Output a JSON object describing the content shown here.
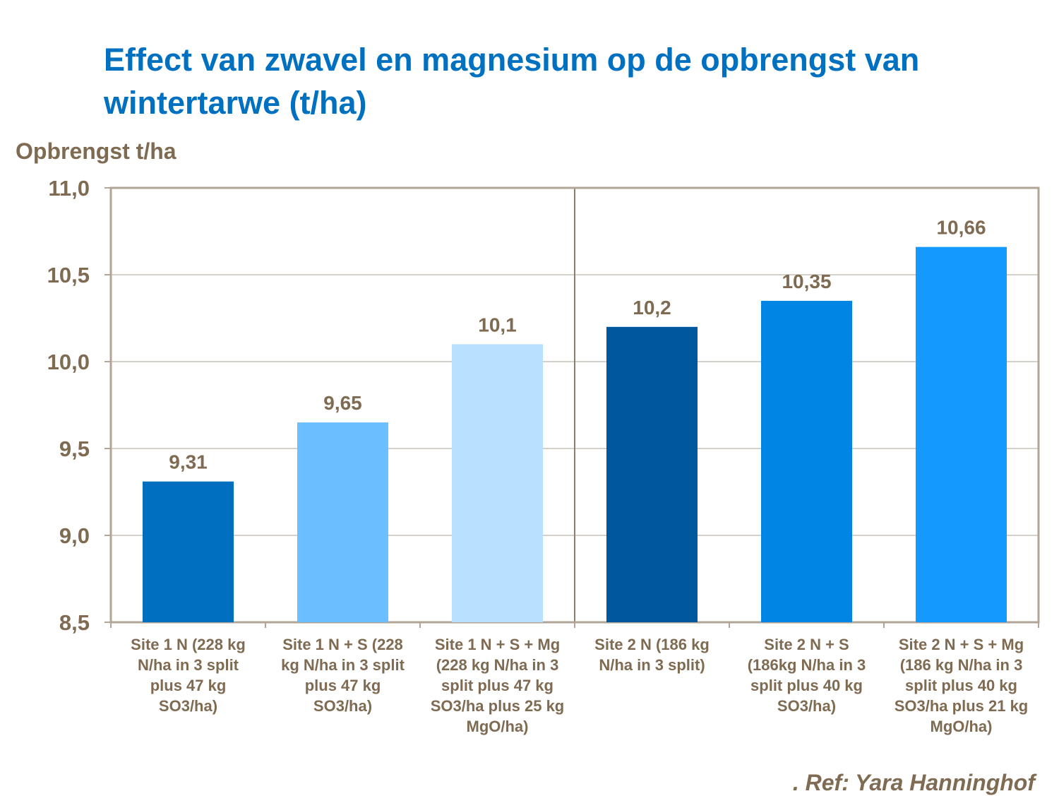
{
  "chart_data": {
    "type": "bar",
    "title": "Effect van zwavel en magnesium op de opbrengst van wintertarwe (t/ha)",
    "ylabel": "Opbrengst t/ha",
    "xlabel": "",
    "ylim": [
      8.5,
      11.0
    ],
    "yticks": [
      "8,5",
      "9,0",
      "9,5",
      "10,0",
      "10,5",
      "11,0"
    ],
    "ytick_values": [
      8.5,
      9.0,
      9.5,
      10.0,
      10.5,
      11.0
    ],
    "grid": true,
    "categories": [
      [
        "Site 1 N (228 kg",
        "N/ha in 3 split",
        "plus 47 kg",
        "SO3/ha)"
      ],
      [
        "Site 1 N + S (228",
        "kg N/ha in 3 split",
        "plus 47 kg",
        "SO3/ha)"
      ],
      [
        "Site 1 N + S + Mg",
        "(228 kg N/ha in 3",
        "split plus 47 kg",
        "SO3/ha plus 25 kg",
        "MgO/ha)"
      ],
      [
        "Site 2 N (186 kg",
        "N/ha in 3 split)"
      ],
      [
        "Site 2 N + S",
        "(186kg N/ha in 3",
        "split plus 40 kg",
        "SO3/ha)"
      ],
      [
        "Site 2 N + S + Mg",
        "(186 kg N/ha in 3",
        "split plus 40 kg",
        "SO3/ha plus 21 kg",
        "MgO/ha)"
      ]
    ],
    "values": [
      9.31,
      9.65,
      10.1,
      10.2,
      10.35,
      10.66
    ],
    "data_labels": [
      "9,31",
      "9,65",
      "10,1",
      "10,2",
      "10,35",
      "10,66"
    ],
    "colors": [
      "#006FC0",
      "#6BBEFF",
      "#B8E0FF",
      "#00579B",
      "#0085E5",
      "#1499FF"
    ],
    "separator_after_category": 3,
    "legend": "none"
  },
  "footer": {
    "reference": ". Ref: Yara Hanninghof"
  }
}
